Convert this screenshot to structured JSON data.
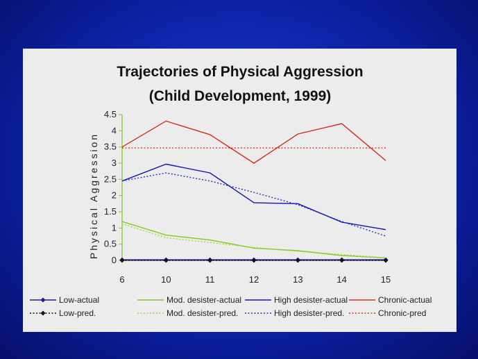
{
  "chart_data": {
    "type": "line",
    "title": "Trajectories of Physical Aggression",
    "subtitle": "(Child Development, 1999)",
    "xlabel": "",
    "ylabel": "Physical Aggression",
    "categories": [
      "6",
      "10",
      "11",
      "12",
      "13",
      "14",
      "15"
    ],
    "ylim": [
      0,
      4.5
    ],
    "yticks": [
      "0",
      "0.5",
      "1",
      "1.5",
      "2",
      "2.5",
      "3",
      "3.5",
      "4",
      "4.5"
    ],
    "grid": false,
    "legend_position": "bottom",
    "series": [
      {
        "name": "Low-actual",
        "color": "#1a1a9a",
        "style": "solid",
        "marker": "diamond",
        "values": [
          0.02,
          0.02,
          0.02,
          0.02,
          0.02,
          0.02,
          0.02
        ]
      },
      {
        "name": "Low-pred.",
        "color": "#111111",
        "style": "dotted",
        "marker": "diamond",
        "values": [
          0.0,
          0.0,
          0.0,
          0.0,
          0.0,
          0.0,
          0.0
        ]
      },
      {
        "name": "Mod. desister-actual",
        "color": "#7ccc1a",
        "style": "solid",
        "marker": "none",
        "values": [
          1.2,
          0.78,
          0.63,
          0.38,
          0.3,
          0.15,
          0.08
        ]
      },
      {
        "name": "Mod. desister-pred.",
        "color": "#9ad84a",
        "style": "dotted",
        "marker": "none",
        "values": [
          1.13,
          0.7,
          0.55,
          0.4,
          0.28,
          0.18,
          0.08
        ]
      },
      {
        "name": "High desister-actual",
        "color": "#1010b4",
        "style": "solid",
        "marker": "none",
        "values": [
          2.45,
          2.97,
          2.7,
          1.78,
          1.75,
          1.18,
          0.95
        ]
      },
      {
        "name": "High desister-pred.",
        "color": "#2a2ad8",
        "style": "dotted",
        "marker": "none",
        "values": [
          2.45,
          2.7,
          2.45,
          2.1,
          1.72,
          1.2,
          0.75
        ]
      },
      {
        "name": "Chronic-actual",
        "color": "#d82a1a",
        "style": "solid",
        "marker": "none",
        "values": [
          3.5,
          4.3,
          3.88,
          3.0,
          3.9,
          4.22,
          3.08
        ]
      },
      {
        "name": "Chronic-pred",
        "color": "#e0301c",
        "style": "dotted",
        "marker": "none",
        "values": [
          3.47,
          3.47,
          3.47,
          3.47,
          3.47,
          3.47,
          3.47
        ]
      }
    ]
  }
}
